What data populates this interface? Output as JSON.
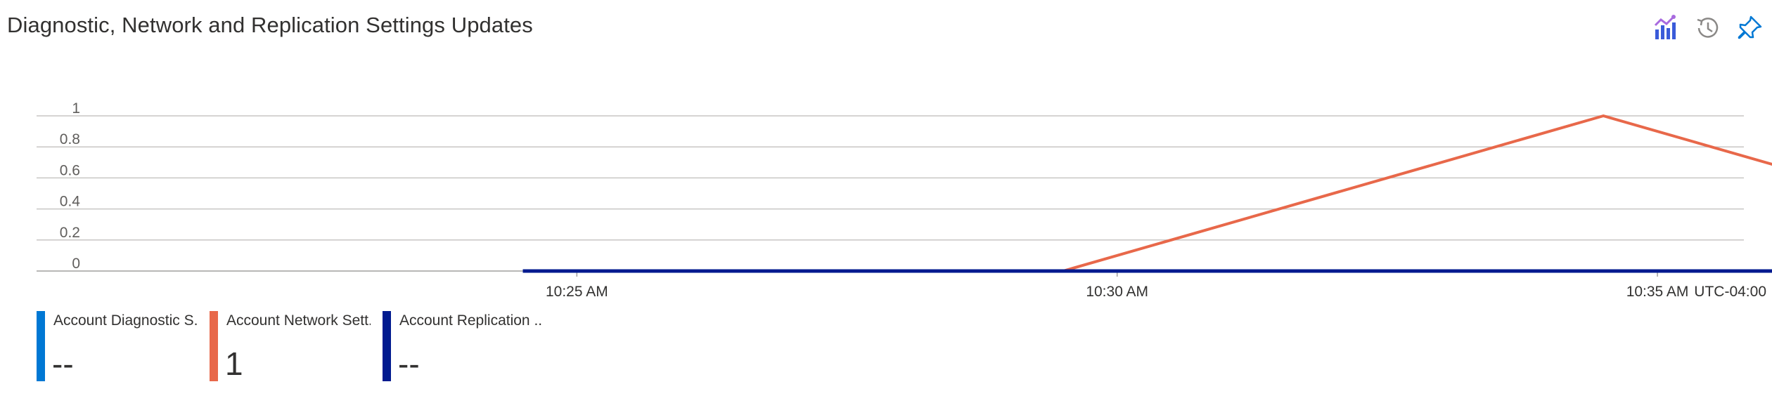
{
  "title": "Diagnostic, Network and Replication Settings Updates",
  "toolbar": {
    "icons": [
      "metrics-chart-icon",
      "history-icon",
      "pin-icon"
    ],
    "accent_color": "#0078d4"
  },
  "chart_data": {
    "type": "line",
    "x_tick_labels": [
      "10:25 AM",
      "10:30 AM",
      "10:35 AM"
    ],
    "x_tick_minutes": [
      25,
      30,
      35
    ],
    "xlim_minutes": [
      20.0,
      35.8
    ],
    "timezone_label": "UTC-04:00",
    "y_tick_labels": [
      "0",
      "0.2",
      "0.4",
      "0.6",
      "0.8",
      "1"
    ],
    "ylim": [
      0,
      1
    ],
    "grid": true,
    "legend_placement": "bottom-left",
    "series": [
      {
        "name": "Account Diagnostic S...",
        "color": "#0078d4",
        "value_label": "--",
        "points": []
      },
      {
        "name": "Account Network Sett...",
        "color": "#e8684a",
        "value_label": "1",
        "points": [
          [
            29.5,
            0
          ],
          [
            34.5,
            1
          ],
          [
            37.5,
            0.4
          ]
        ]
      },
      {
        "name": "Account Replication ...",
        "color": "#001a8f",
        "value_label": "--",
        "points": [
          [
            24.5,
            0
          ],
          [
            37.5,
            0
          ]
        ]
      }
    ]
  }
}
